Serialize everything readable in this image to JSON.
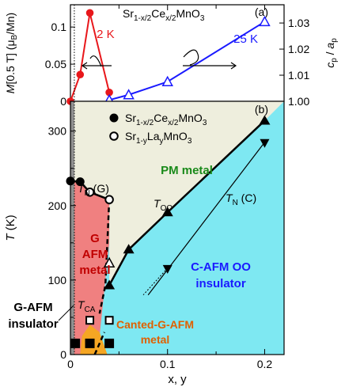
{
  "chart_data": [
    {
      "panel": "a",
      "type": "line",
      "panel_label": "(a)",
      "formula": {
        "base": "Sr",
        "sub1": "1-x/2",
        "mid": "Ce",
        "sub2": "x/2",
        "tail": "MnO",
        "sub3": "3"
      },
      "xlim": [
        0,
        0.22
      ],
      "ylabel_left": "M[0.5 T] (μB/Mn)",
      "ylabel_right": "cp/ap",
      "ylim_left": [
        0,
        0.13
      ],
      "ylim_right": [
        1.0,
        1.037
      ],
      "yticks_left": [
        "0",
        "0.05",
        "0.1"
      ],
      "yticks_right": [
        "1.00",
        "1.01",
        "1.02",
        "1.03"
      ],
      "series": [
        {
          "name": "2 K",
          "axis": "left",
          "color": "#e8171b",
          "marker": "filled-circle",
          "x": [
            0,
            0.01,
            0.02,
            0.04
          ],
          "y": [
            0.0,
            0.036,
            0.119,
            0.012
          ]
        },
        {
          "name": "25 K",
          "axis": "right",
          "color": "#1a1aff",
          "marker": "open-triangle",
          "x": [
            0.04,
            0.06,
            0.1,
            0.2
          ],
          "y": [
            1.0005,
            1.0025,
            1.0075,
            1.0305
          ]
        }
      ]
    },
    {
      "panel": "b",
      "type": "scatter",
      "panel_label": "(b)",
      "xlabel": "x, y",
      "ylabel": "T (K)",
      "xlim": [
        0,
        0.22
      ],
      "ylim": [
        0,
        340
      ],
      "xticks": [
        "0",
        "0.1",
        "0.2"
      ],
      "yticks": [
        "0",
        "100",
        "200",
        "300"
      ],
      "legend": [
        {
          "marker": "filled-circle",
          "base": "Sr",
          "sub1": "1-x/2",
          "mid": "Ce",
          "sub2": "x/2",
          "tail": "MnO",
          "sub3": "3"
        },
        {
          "marker": "open-circle",
          "base": "Sr",
          "sub1": "1-y",
          "mid": "La",
          "sub2": "y",
          "tail": "MnO",
          "sub3": "3"
        }
      ],
      "regions": [
        {
          "name": "PM metal",
          "color": "#eeeedd",
          "label_color": "#1a8a1a"
        },
        {
          "name": "G AFM metal",
          "lines": [
            "G",
            "AFM",
            "metal"
          ],
          "color": "#f08080",
          "label_color": "#c00000"
        },
        {
          "name": "C-AFM OO insulator",
          "lines": [
            "C-AFM OO",
            "insulator"
          ],
          "color": "#7ee8f2",
          "label_color": "#1a1aff"
        },
        {
          "name": "Canted-G-AFM metal",
          "lines": [
            "Canted-G-AFM",
            "metal"
          ],
          "color": "#f5a623",
          "label_color": "#e06000"
        },
        {
          "name": "G-AFM insulator",
          "lines": [
            "G-AFM",
            "insulator"
          ],
          "color": "#909090",
          "label_color": "#000000"
        }
      ],
      "annotations": {
        "TN_G": {
          "T": "T",
          "sub": "N",
          "tail": " (G)"
        },
        "TOO": {
          "T": "T",
          "sub": "OO",
          "tail": ""
        },
        "TN_C": {
          "T": "T",
          "sub": "N",
          "tail": " (C)"
        },
        "TCA": {
          "T": "T",
          "sub": "CA",
          "tail": ""
        }
      },
      "series": [
        {
          "name": "TN(G) Ce",
          "marker": "filled-circle",
          "x": [
            0.0,
            0.01
          ],
          "y": [
            233,
            232
          ]
        },
        {
          "name": "TN(G) La",
          "marker": "open-circle",
          "x": [
            0.02,
            0.04
          ],
          "y": [
            218,
            208
          ]
        },
        {
          "name": "TOO / TN(C) warming",
          "marker": "filled-triangle-up",
          "x": [
            0.04,
            0.06,
            0.1,
            0.2
          ],
          "y": [
            93,
            141,
            191,
            314
          ]
        },
        {
          "name": "TN(C) cooling",
          "marker": "filled-triangle-down",
          "x": [
            0.1,
            0.2
          ],
          "y": [
            116,
            285
          ]
        },
        {
          "name": "G-AFM boundary open",
          "marker": "open-triangle-up",
          "x": [
            0.04
          ],
          "y": [
            123
          ]
        },
        {
          "name": "TCA filled",
          "marker": "filled-square",
          "x": [
            0.005,
            0.02,
            0.04
          ],
          "y": [
            15,
            15,
            15
          ]
        },
        {
          "name": "TCA open",
          "marker": "open-square",
          "x": [
            0.02,
            0.04
          ],
          "y": [
            46,
            46
          ]
        }
      ]
    }
  ]
}
